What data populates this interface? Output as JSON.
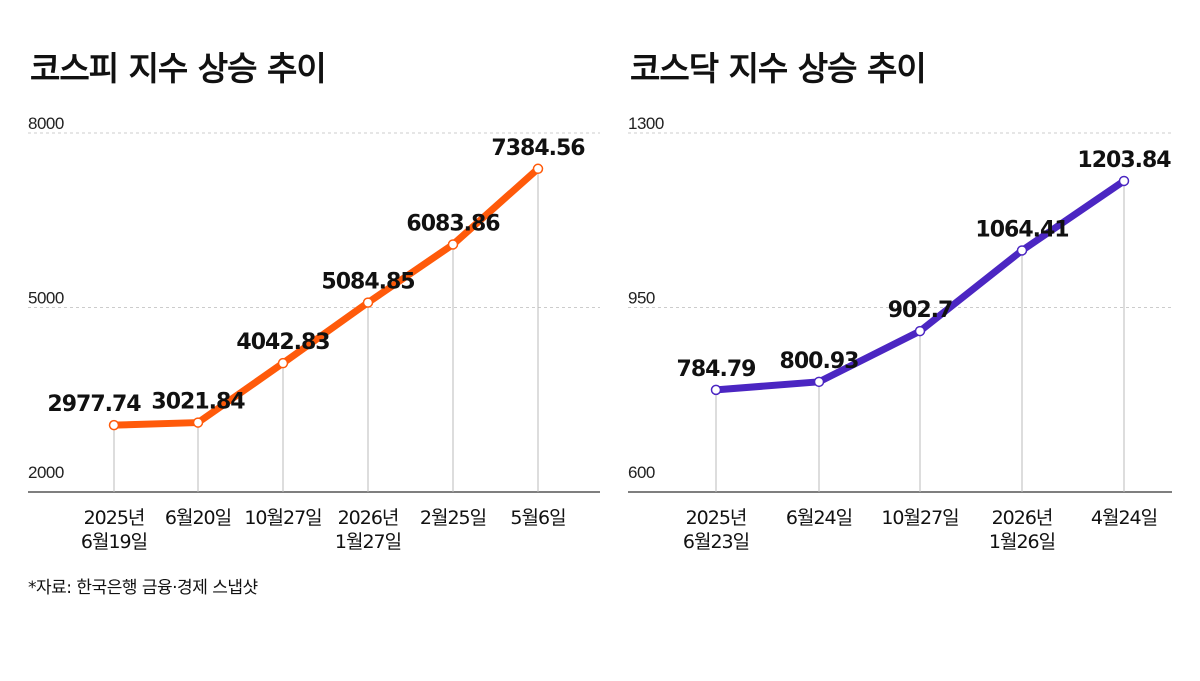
{
  "chart_data": [
    {
      "type": "line",
      "title": "코스피 지수 상승 추이",
      "categories": [
        [
          "2025년",
          "6월19일"
        ],
        [
          "6월20일"
        ],
        [
          "10월27일"
        ],
        [
          "2026년",
          "1월27일"
        ],
        [
          "2월25일"
        ],
        [
          "5월6일"
        ]
      ],
      "series": [
        {
          "values": [
            2977.74,
            3021.84,
            4042.83,
            5084.85,
            6083.86,
            7384.56
          ]
        }
      ],
      "value_labels": [
        "2977.74",
        "3021.84",
        "4042.83",
        "5084.85",
        "6083.86",
        "7384.56"
      ],
      "yticks": [
        "8000",
        "5000",
        "2000"
      ],
      "ytick_values": [
        8000,
        5000,
        2000
      ],
      "ylim": [
        2000,
        8000
      ],
      "grid": true,
      "color": "#ff5a0a"
    },
    {
      "type": "line",
      "title": "코스닥 지수 상승 추이",
      "categories": [
        [
          "2025년",
          "6월23일"
        ],
        [
          "6월24일"
        ],
        [
          "10월27일"
        ],
        [
          "2026년",
          "1월26일"
        ],
        [
          "4월24일"
        ]
      ],
      "series": [
        {
          "values": [
            784.79,
            800.93,
            902.7,
            1064.41,
            1203.84
          ]
        }
      ],
      "value_labels": [
        "784.79",
        "800.93",
        "902.7",
        "1064.41",
        "1203.84"
      ],
      "yticks": [
        "1300",
        "950",
        "600"
      ],
      "ytick_values": [
        1300,
        950,
        600
      ],
      "ylim": [
        600,
        1300
      ],
      "grid": true,
      "color": "#4b26c2"
    }
  ],
  "source": "*자료:  한국은행 금융·경제 스냅샷"
}
